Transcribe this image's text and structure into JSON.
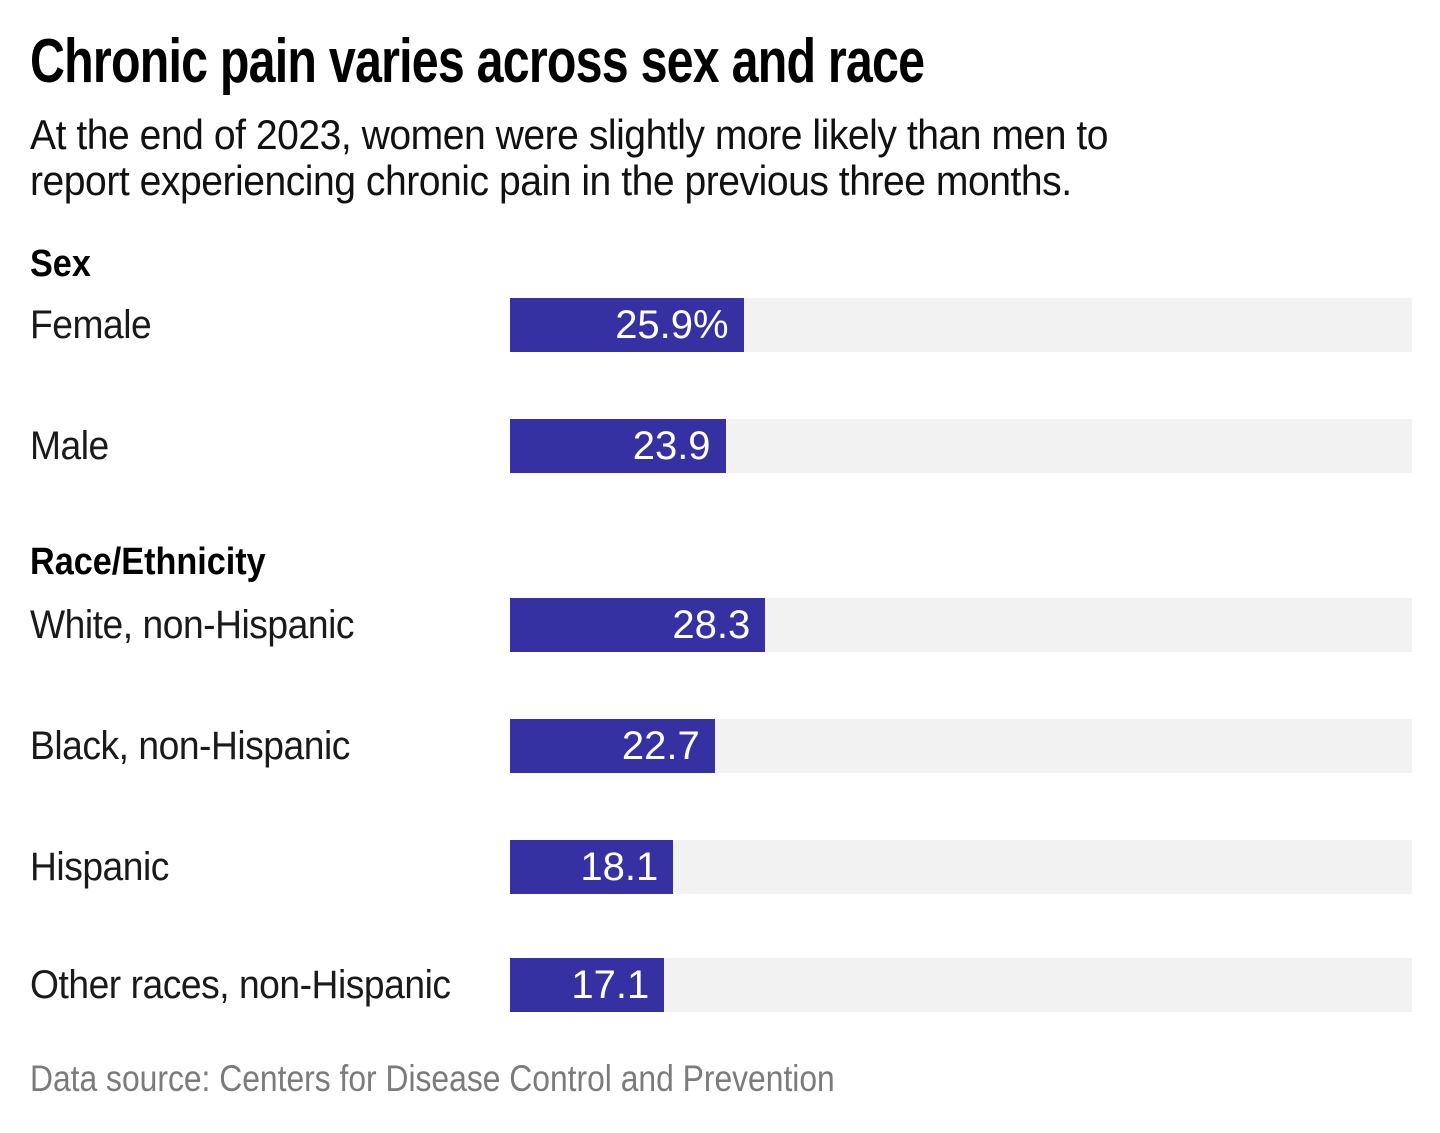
{
  "header": {
    "title": "Chronic pain varies across sex and race",
    "subtitle_line1": "At the end of 2023, women were slightly more likely than men to",
    "subtitle_line2": "report experiencing chronic pain in the previous three months."
  },
  "chart_data": {
    "type": "bar",
    "orientation": "horizontal",
    "value_unit": "percent",
    "axis_range": [
      0,
      100
    ],
    "grid": false,
    "legend": false,
    "title": "Chronic pain varies across sex and race",
    "subtitle": "At the end of 2023, women were slightly more likely than men to report experiencing chronic pain in the previous three months.",
    "sections": [
      {
        "label": "Sex",
        "rows": [
          {
            "label": "Female",
            "value": 25.9,
            "value_label": "25.9%"
          },
          {
            "label": "Male",
            "value": 23.9,
            "value_label": "23.9"
          }
        ]
      },
      {
        "label": "Race/Ethnicity",
        "rows": [
          {
            "label": "White, non-Hispanic",
            "value": 28.3,
            "value_label": "28.3"
          },
          {
            "label": "Black, non-Hispanic",
            "value": 22.7,
            "value_label": "22.7"
          },
          {
            "label": "Hispanic",
            "value": 18.1,
            "value_label": "18.1"
          },
          {
            "label": "Other races, non-Hispanic",
            "value": 17.1,
            "value_label": "17.1"
          }
        ]
      }
    ],
    "colors": {
      "bar_fill": "#3531a2",
      "bar_track": "#f2f2f2",
      "value_text": "#ffffff",
      "footer_text": "#7b7b7b"
    }
  },
  "footer": {
    "source": "Data source: Centers for Disease Control and Prevention"
  }
}
